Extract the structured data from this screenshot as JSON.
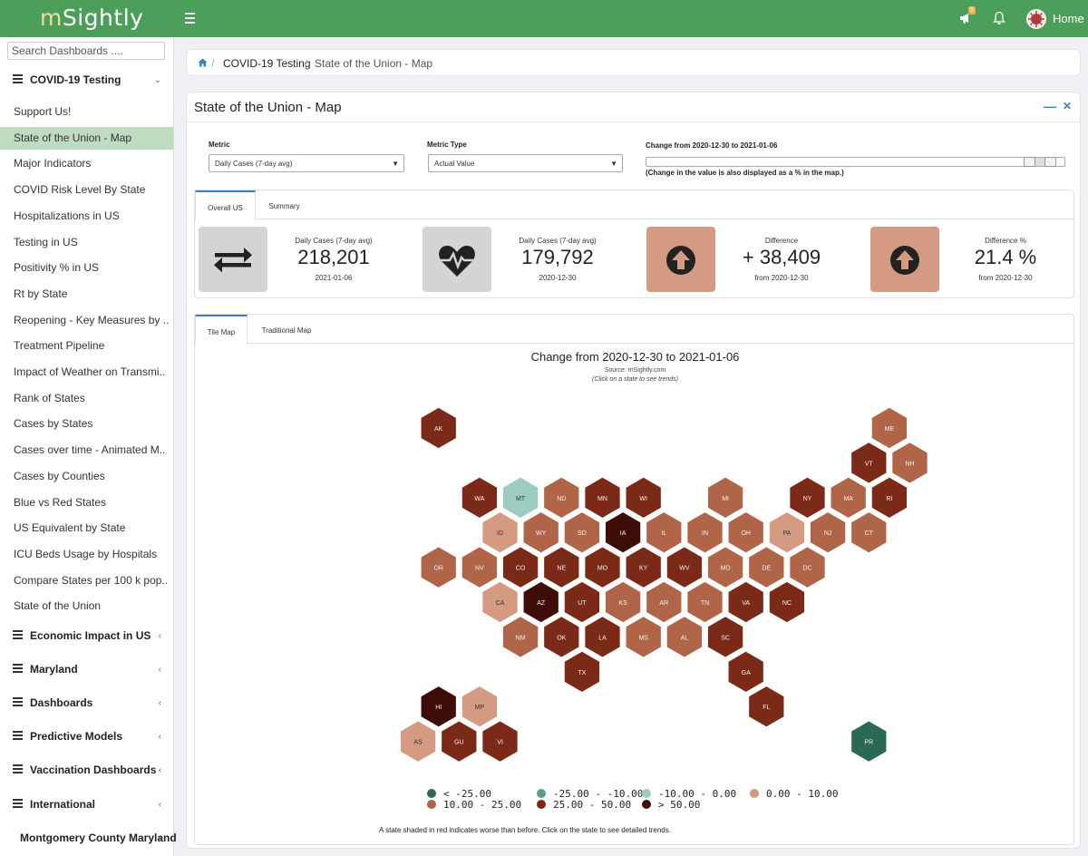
{
  "app": {
    "logo_prefix": "m",
    "logo_rest": "Sightly",
    "notification_count": "5",
    "home_label": "Home"
  },
  "sidebar": {
    "search_placeholder": "Search Dashboards ....",
    "open_group": "COVID-19 Testing",
    "items": [
      "Support Us!",
      "State of the Union - Map",
      "Major Indicators",
      "COVID Risk Level By State",
      "Hospitalizations in US",
      "Testing in US",
      "Positivity % in US",
      "Rt by State",
      "Reopening - Key Measures by ..",
      "Treatment Pipeline",
      "Impact of Weather on Transmi..",
      "Rank of States",
      "Cases by States",
      "Cases over time - Animated M..",
      "Cases by Counties",
      "Blue vs Red States",
      "US Equivalent by State",
      "ICU Beds Usage by Hospitals",
      "Compare States per 100 k pop..",
      "State of the Union"
    ],
    "groups": [
      "Economic Impact in US",
      "Maryland",
      "Dashboards",
      "Predictive Models",
      "Vaccination Dashboards",
      "International",
      "Montgomery County Maryland"
    ]
  },
  "breadcrumb": {
    "level1": "COVID-19 Testing",
    "level2": "State of the Union - Map"
  },
  "panel": {
    "title": "State of the Union - Map",
    "metric_label": "Metric",
    "metric_value": "Daily Cases (7-day avg)",
    "metric_type_label": "Metric Type",
    "metric_type_value": "Actual Value",
    "change_label": "Change from  2020-12-30 to 2021-01-06",
    "change_note": "(Change in the value is also displayed as a % in the map.)",
    "slider_range": [
      0.915,
      0.953
    ]
  },
  "stats": {
    "tabs": [
      "Overall US",
      "Summary"
    ],
    "cards": [
      {
        "label": "Daily Cases (7-day avg)",
        "value": "218,201",
        "sub": "2021-01-06",
        "icon": "exchange-icon",
        "color": "#d4d4d4"
      },
      {
        "label": "Daily Cases (7-day avg)",
        "value": "179,792",
        "sub": "2020-12-30",
        "icon": "heartbeat-icon",
        "color": "#d4d4d4"
      },
      {
        "label": "Difference",
        "value": "+ 38,409",
        "sub": "from 2020-12-30",
        "icon": "arrow-up-icon",
        "color": "#d49a82"
      },
      {
        "label": "Difference %",
        "value": "21.4 %",
        "sub": "from 2020-12-30",
        "icon": "arrow-up-icon",
        "color": "#d49a82"
      }
    ]
  },
  "map": {
    "tabs": [
      "Tile Map",
      "Traditional Map"
    ],
    "title": "Change from 2020-12-30 to 2021-01-06",
    "source": "Source: mSightly.com",
    "hint": "(Click on a state to see trends)",
    "footnote": "A state shaded in red indicates worse than before. Click on the state to see detailed trends.",
    "colors": {
      "lt_-25": "#2b6a52",
      "-25_-10": "#5d9c8a",
      "-10_0": "#9ccbbf",
      "0_10": "#d49a82",
      "10_25": "#b06448",
      "25_50": "#7b2a17",
      "gt_50": "#3d0e07"
    },
    "legend": [
      {
        "label": "< -25.00",
        "bin": "lt_-25"
      },
      {
        "label": "-25.00 - -10.00",
        "bin": "-25_-10"
      },
      {
        "label": "-10.00 - 0.00",
        "bin": "-10_0"
      },
      {
        "label": "0.00 - 10.00",
        "bin": "0_10"
      },
      {
        "label": "10.00 - 25.00",
        "bin": "10_25"
      },
      {
        "label": "25.00 - 50.00",
        "bin": "25_50"
      },
      {
        "label": "> 50.00",
        "bin": "gt_50"
      }
    ],
    "states": [
      {
        "abbr": "AK",
        "row": 0,
        "col": 1,
        "bin": "25_50"
      },
      {
        "abbr": "ME",
        "row": 0,
        "col": 12,
        "bin": "10_25"
      },
      {
        "abbr": "VT",
        "row": 1,
        "col": 11,
        "bin": "25_50"
      },
      {
        "abbr": "NH",
        "row": 1,
        "col": 12,
        "bin": "10_25"
      },
      {
        "abbr": "WA",
        "row": 2,
        "col": 2,
        "bin": "25_50"
      },
      {
        "abbr": "MT",
        "row": 2,
        "col": 3,
        "bin": "-10_0"
      },
      {
        "abbr": "ND",
        "row": 2,
        "col": 4,
        "bin": "10_25"
      },
      {
        "abbr": "MN",
        "row": 2,
        "col": 5,
        "bin": "25_50"
      },
      {
        "abbr": "WI",
        "row": 2,
        "col": 6,
        "bin": "25_50"
      },
      {
        "abbr": "MI",
        "row": 2,
        "col": 8,
        "bin": "10_25"
      },
      {
        "abbr": "NY",
        "row": 2,
        "col": 10,
        "bin": "25_50"
      },
      {
        "abbr": "MA",
        "row": 2,
        "col": 11,
        "bin": "10_25"
      },
      {
        "abbr": "RI",
        "row": 2,
        "col": 12,
        "bin": "25_50"
      },
      {
        "abbr": "ID",
        "row": 3,
        "col": 2,
        "bin": "0_10"
      },
      {
        "abbr": "WY",
        "row": 3,
        "col": 3,
        "bin": "10_25"
      },
      {
        "abbr": "SD",
        "row": 3,
        "col": 4,
        "bin": "10_25"
      },
      {
        "abbr": "IA",
        "row": 3,
        "col": 5,
        "bin": "gt_50"
      },
      {
        "abbr": "IL",
        "row": 3,
        "col": 6,
        "bin": "10_25"
      },
      {
        "abbr": "IN",
        "row": 3,
        "col": 7,
        "bin": "10_25"
      },
      {
        "abbr": "OH",
        "row": 3,
        "col": 8,
        "bin": "10_25"
      },
      {
        "abbr": "PA",
        "row": 3,
        "col": 9,
        "bin": "0_10"
      },
      {
        "abbr": "NJ",
        "row": 3,
        "col": 10,
        "bin": "10_25"
      },
      {
        "abbr": "CT",
        "row": 3,
        "col": 11,
        "bin": "10_25"
      },
      {
        "abbr": "OR",
        "row": 4,
        "col": 1,
        "bin": "10_25"
      },
      {
        "abbr": "NV",
        "row": 4,
        "col": 2,
        "bin": "10_25"
      },
      {
        "abbr": "CO",
        "row": 4,
        "col": 3,
        "bin": "25_50"
      },
      {
        "abbr": "NE",
        "row": 4,
        "col": 4,
        "bin": "25_50"
      },
      {
        "abbr": "MO",
        "row": 4,
        "col": 5,
        "bin": "25_50"
      },
      {
        "abbr": "KY",
        "row": 4,
        "col": 6,
        "bin": "25_50"
      },
      {
        "abbr": "WV",
        "row": 4,
        "col": 7,
        "bin": "25_50"
      },
      {
        "abbr": "MD",
        "row": 4,
        "col": 8,
        "bin": "10_25"
      },
      {
        "abbr": "DE",
        "row": 4,
        "col": 9,
        "bin": "10_25"
      },
      {
        "abbr": "DC",
        "row": 4,
        "col": 10,
        "bin": "10_25"
      },
      {
        "abbr": "CA",
        "row": 5,
        "col": 2,
        "bin": "0_10"
      },
      {
        "abbr": "AZ",
        "row": 5,
        "col": 3,
        "bin": "gt_50"
      },
      {
        "abbr": "UT",
        "row": 5,
        "col": 4,
        "bin": "25_50"
      },
      {
        "abbr": "KS",
        "row": 5,
        "col": 5,
        "bin": "10_25"
      },
      {
        "abbr": "AR",
        "row": 5,
        "col": 6,
        "bin": "10_25"
      },
      {
        "abbr": "TN",
        "row": 5,
        "col": 7,
        "bin": "10_25"
      },
      {
        "abbr": "VA",
        "row": 5,
        "col": 8,
        "bin": "25_50"
      },
      {
        "abbr": "NC",
        "row": 5,
        "col": 9,
        "bin": "25_50"
      },
      {
        "abbr": "NM",
        "row": 6,
        "col": 3,
        "bin": "10_25"
      },
      {
        "abbr": "OK",
        "row": 6,
        "col": 4,
        "bin": "25_50"
      },
      {
        "abbr": "LA",
        "row": 6,
        "col": 5,
        "bin": "25_50"
      },
      {
        "abbr": "MS",
        "row": 6,
        "col": 6,
        "bin": "10_25"
      },
      {
        "abbr": "AL",
        "row": 6,
        "col": 7,
        "bin": "10_25"
      },
      {
        "abbr": "SC",
        "row": 6,
        "col": 8,
        "bin": "25_50"
      },
      {
        "abbr": "TX",
        "row": 7,
        "col": 4,
        "bin": "25_50"
      },
      {
        "abbr": "GA",
        "row": 7,
        "col": 8,
        "bin": "25_50"
      },
      {
        "abbr": "FL",
        "row": 8,
        "col": 9,
        "bin": "25_50"
      },
      {
        "abbr": "HI",
        "row": 8,
        "col": 1,
        "bin": "gt_50"
      },
      {
        "abbr": "MP",
        "row": 8,
        "col": 2,
        "bin": "0_10"
      },
      {
        "abbr": "AS",
        "row": 9,
        "col": 0,
        "bin": "0_10"
      },
      {
        "abbr": "GU",
        "row": 9,
        "col": 1,
        "bin": "25_50"
      },
      {
        "abbr": "VI",
        "row": 9,
        "col": 2,
        "bin": "25_50"
      },
      {
        "abbr": "PR",
        "row": 9,
        "col": 11,
        "bin": "lt_-25"
      }
    ]
  }
}
